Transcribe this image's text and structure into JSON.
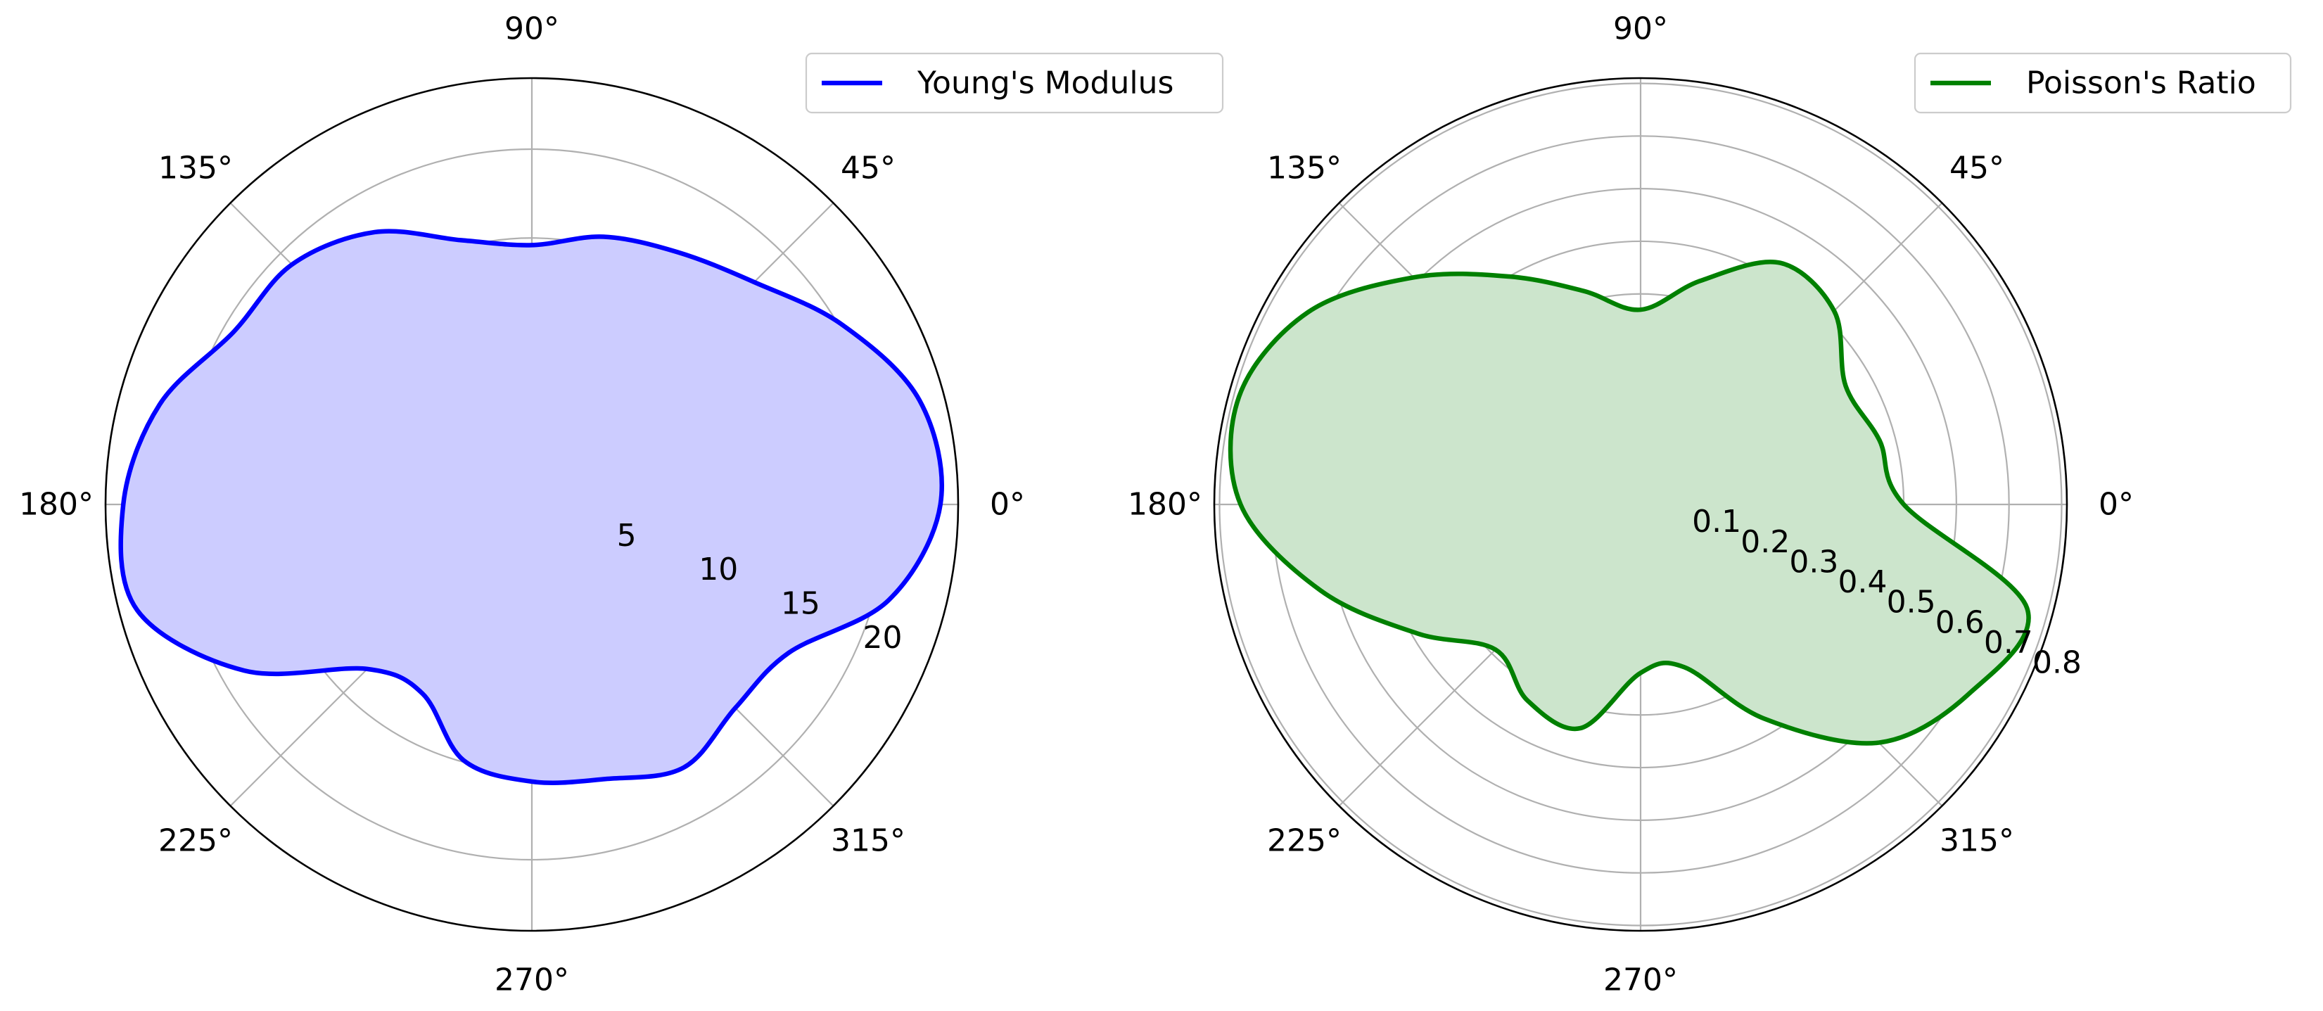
{
  "chart_data": [
    {
      "type": "polar",
      "subplot": "left",
      "angle_unit": "degrees",
      "angular_ticks": [
        "0°",
        "45°",
        "90°",
        "135°",
        "180°",
        "225°",
        "270°",
        "315°"
      ],
      "angular_tick_values": [
        0,
        45,
        90,
        135,
        180,
        225,
        270,
        315
      ],
      "radial_ticks": [
        "5",
        "10",
        "15",
        "20"
      ],
      "radial_tick_values": [
        5,
        10,
        15,
        20
      ],
      "rlim": [
        0,
        24
      ],
      "grid": true,
      "legend_position": "upper right",
      "series": [
        {
          "name": "Young's Modulus",
          "color": "#0000ff",
          "fill": "#ccccff",
          "points": [
            [
              0,
              23.0
            ],
            [
              15,
              22.6
            ],
            [
              30,
              20.2
            ],
            [
              45,
              17.7
            ],
            [
              60,
              16.4
            ],
            [
              75,
              15.6
            ],
            [
              90,
              14.6
            ],
            [
              105,
              15.4
            ],
            [
              120,
              17.7
            ],
            [
              135,
              19.1
            ],
            [
              150,
              19.4
            ],
            [
              165,
              21.7
            ],
            [
              180,
              23.0
            ],
            [
              195,
              23.0
            ],
            [
              210,
              18.7
            ],
            [
              225,
              13.1
            ],
            [
              240,
              12.3
            ],
            [
              255,
              14.9
            ],
            [
              270,
              15.6
            ],
            [
              285,
              16.0
            ],
            [
              300,
              17.1
            ],
            [
              315,
              16.2
            ],
            [
              330,
              16.7
            ],
            [
              345,
              20.8
            ],
            [
              360,
              23.0
            ]
          ]
        }
      ]
    },
    {
      "type": "polar",
      "subplot": "right",
      "angle_unit": "degrees",
      "angular_ticks": [
        "0°",
        "45°",
        "90°",
        "135°",
        "180°",
        "225°",
        "270°",
        "315°"
      ],
      "angular_tick_values": [
        0,
        45,
        90,
        135,
        180,
        225,
        270,
        315
      ],
      "radial_ticks": [
        "0.1",
        "0.2",
        "0.3",
        "0.4",
        "0.5",
        "0.6",
        "0.7",
        "0.8"
      ],
      "radial_tick_values": [
        0.1,
        0.2,
        0.3,
        0.4,
        0.5,
        0.6,
        0.7,
        0.8
      ],
      "rlim": [
        0,
        0.81
      ],
      "grid": true,
      "legend_position": "upper right",
      "series": [
        {
          "name": "Poisson's Ratio",
          "color": "#008000",
          "fill": "#cce5cc",
          "points": [
            [
              0,
              0.5
            ],
            [
              15,
              0.47
            ],
            [
              30,
              0.45
            ],
            [
              45,
              0.52
            ],
            [
              60,
              0.53
            ],
            [
              75,
              0.44
            ],
            [
              90,
              0.37
            ],
            [
              105,
              0.42
            ],
            [
              120,
              0.5
            ],
            [
              135,
              0.61
            ],
            [
              150,
              0.73
            ],
            [
              165,
              0.79
            ],
            [
              180,
              0.76
            ],
            [
              195,
              0.63
            ],
            [
              210,
              0.49
            ],
            [
              225,
              0.39
            ],
            [
              240,
              0.43
            ],
            [
              255,
              0.44
            ],
            [
              270,
              0.32
            ],
            [
              285,
              0.32
            ],
            [
              300,
              0.47
            ],
            [
              315,
              0.64
            ],
            [
              330,
              0.72
            ],
            [
              345,
              0.76
            ],
            [
              360,
              0.5
            ]
          ]
        }
      ]
    }
  ]
}
